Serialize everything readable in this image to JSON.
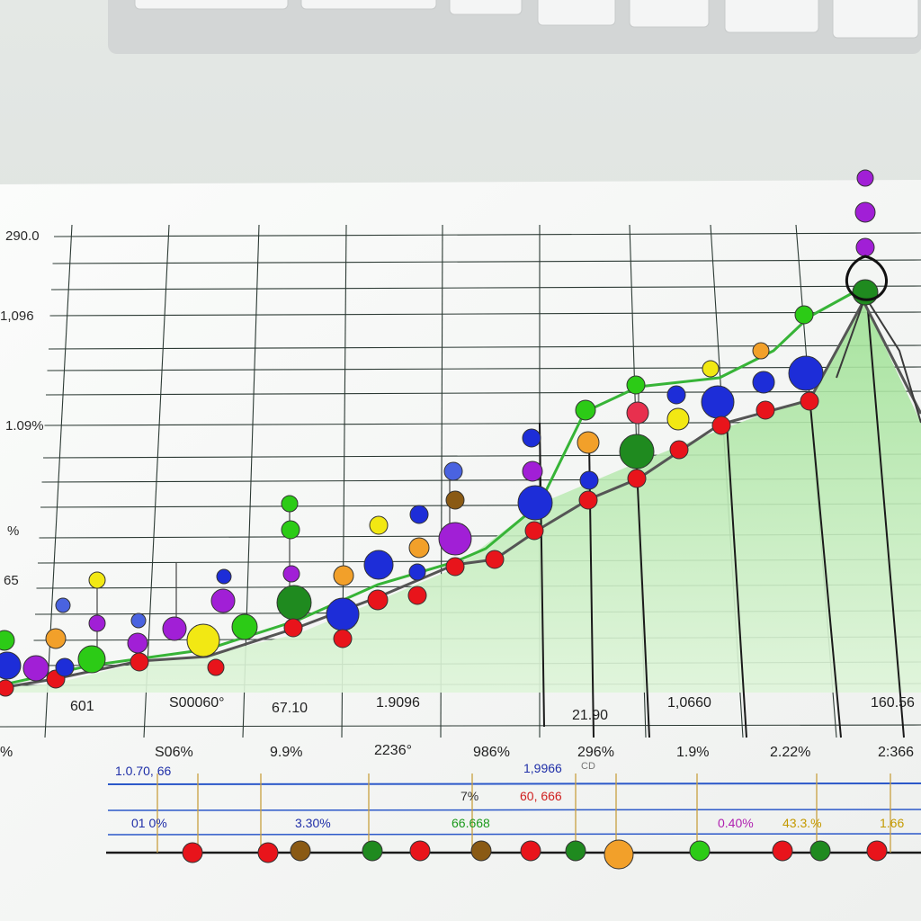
{
  "colors": {
    "area_fill": "#b8e9b0",
    "green_line": "#37b437",
    "dark_line": "#4a4a4a",
    "grid": "#2c3a34",
    "paper": "#f6f7f6",
    "blue_rule": "#2b58c9"
  },
  "chart_data": {
    "type": "scatter",
    "title": "",
    "xlabel": "",
    "ylabel": "",
    "y_tick_labels": [
      "290.0",
      "1,096",
      "1.09%",
      "%",
      "65"
    ],
    "x_labels_row1": [
      "601",
      "S00060°",
      "67.10",
      "1.9096",
      "21.90",
      "1,0660",
      "160.56"
    ],
    "x_labels_row2": [
      "%",
      "S06%",
      "9.9%",
      "2236°",
      "986%",
      "296%",
      "1.9%",
      "2.22%",
      "2:366"
    ],
    "bottom_labels": [
      {
        "text": "1.0.70, 66",
        "color": "#1f2fa8"
      },
      {
        "text": "1,9966",
        "color": "#1f2fa8"
      },
      {
        "text": "CD",
        "color": "#777777"
      },
      {
        "text": "7%",
        "color": "#333333"
      },
      {
        "text": "60, 666",
        "color": "#d02020"
      },
      {
        "text": "01 0%",
        "color": "#1f2fa8"
      },
      {
        "text": "3.30%",
        "color": "#1f2fa8"
      },
      {
        "text": "66.668",
        "color": "#1c9a1c"
      },
      {
        "text": "0.40%",
        "color": "#b020b0"
      },
      {
        "text": "43.3.%",
        "color": "#c49a00"
      },
      {
        "text": "1.66",
        "color": "#c49a00"
      }
    ]
  }
}
